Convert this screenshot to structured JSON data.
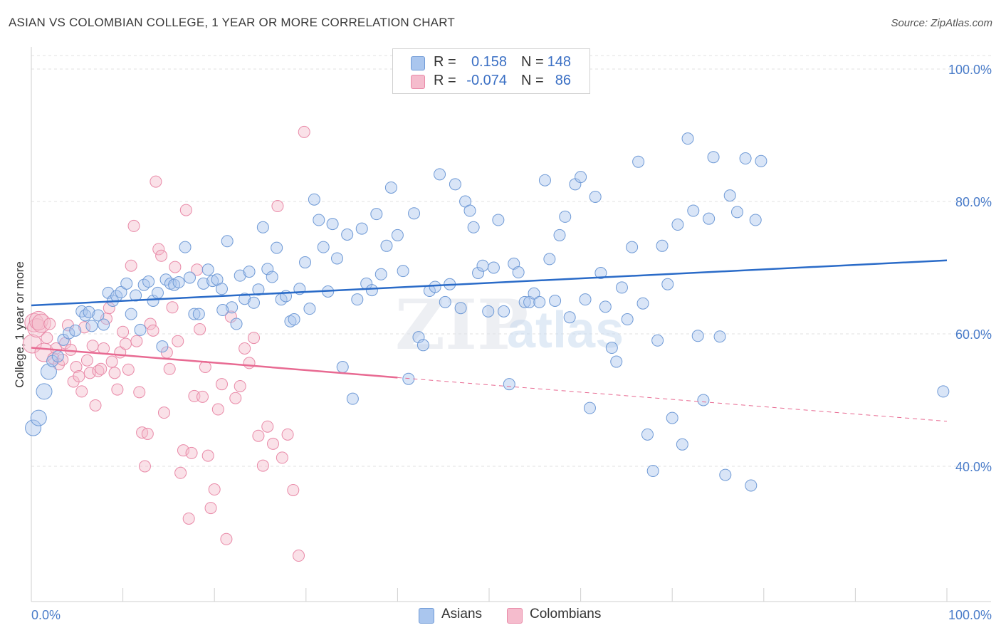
{
  "header": {
    "title": "ASIAN VS COLOMBIAN COLLEGE, 1 YEAR OR MORE CORRELATION CHART",
    "source": "Source: ZipAtlas.com"
  },
  "colors": {
    "asian_fill": "#aac6ee",
    "asian_stroke": "#6f9ad6",
    "asian_line": "#2a6bc8",
    "colombian_fill": "#f5bccd",
    "colombian_stroke": "#e98aa8",
    "colombian_line": "#e86a92",
    "tick_text": "#4a7cc9",
    "grid": "#e2e2e2"
  },
  "legend": {
    "rows": [
      {
        "r_label": "R =",
        "r_value": "0.158",
        "n_label": "N =",
        "n_value": "148",
        "color": "#aac6ee"
      },
      {
        "r_label": "R =",
        "r_value": "-0.074",
        "n_label": "N =",
        "n_value": "86",
        "color": "#f5bccd"
      }
    ]
  },
  "bottom_legend": [
    {
      "label": "Asians",
      "color": "#aac6ee"
    },
    {
      "label": "Colombians",
      "color": "#f5bccd"
    }
  ],
  "watermark": {
    "zip": "ZIP",
    "atlas": "atlas"
  },
  "chart_data": {
    "type": "scatter",
    "title": "ASIAN VS COLOMBIAN COLLEGE, 1 YEAR OR MORE CORRELATION CHART",
    "xlabel": "",
    "ylabel": "College, 1 year or more",
    "xlim": [
      0,
      100
    ],
    "ylim": [
      18,
      104
    ],
    "x_tick_labels": [
      "0.0%",
      "100.0%"
    ],
    "y_ticks": [
      40,
      60,
      80,
      100
    ],
    "y_tick_labels": [
      "40.0%",
      "60.0%",
      "80.0%",
      "100.0%"
    ],
    "grid": true,
    "legend_position": "top-center",
    "series": [
      {
        "name": "Asians",
        "r": 0.158,
        "n": 148,
        "trend": {
          "x": [
            0,
            100
          ],
          "y": [
            64.3,
            71.1
          ]
        },
        "points": [
          [
            0.2,
            45.8
          ],
          [
            0.8,
            47.3
          ],
          [
            1.4,
            51.3
          ],
          [
            1.9,
            54.3
          ],
          [
            2.3,
            55.9
          ],
          [
            2.9,
            56.6
          ],
          [
            3.5,
            59.1
          ],
          [
            4.1,
            60.1
          ],
          [
            4.8,
            60.5
          ],
          [
            5.5,
            63.4
          ],
          [
            5.9,
            62.8
          ],
          [
            6.3,
            63.3
          ],
          [
            6.6,
            61.2
          ],
          [
            7.3,
            62.8
          ],
          [
            7.9,
            61.4
          ],
          [
            8.4,
            66.2
          ],
          [
            8.9,
            65.0
          ],
          [
            9.3,
            65.7
          ],
          [
            9.8,
            66.3
          ],
          [
            10.4,
            67.6
          ],
          [
            10.9,
            63.0
          ],
          [
            11.4,
            65.8
          ],
          [
            11.9,
            60.6
          ],
          [
            12.3,
            67.4
          ],
          [
            12.8,
            67.9
          ],
          [
            13.3,
            65.0
          ],
          [
            13.8,
            66.2
          ],
          [
            14.3,
            58.1
          ],
          [
            14.7,
            68.2
          ],
          [
            15.2,
            67.6
          ],
          [
            15.6,
            67.4
          ],
          [
            16.1,
            67.8
          ],
          [
            16.8,
            73.1
          ],
          [
            17.3,
            68.5
          ],
          [
            17.8,
            63.0
          ],
          [
            18.3,
            63.0
          ],
          [
            18.8,
            67.6
          ],
          [
            19.3,
            69.7
          ],
          [
            19.8,
            68.0
          ],
          [
            20.3,
            68.2
          ],
          [
            20.8,
            66.8
          ],
          [
            21.4,
            74.0
          ],
          [
            21.9,
            64.0
          ],
          [
            22.4,
            61.5
          ],
          [
            22.8,
            68.8
          ],
          [
            23.3,
            65.3
          ],
          [
            23.8,
            69.4
          ],
          [
            24.3,
            64.7
          ],
          [
            24.8,
            66.7
          ],
          [
            25.3,
            76.1
          ],
          [
            25.8,
            69.8
          ],
          [
            26.3,
            68.6
          ],
          [
            26.8,
            73.0
          ],
          [
            27.3,
            65.2
          ],
          [
            27.8,
            65.7
          ],
          [
            28.3,
            61.9
          ],
          [
            28.7,
            62.2
          ],
          [
            29.3,
            66.8
          ],
          [
            29.9,
            70.8
          ],
          [
            30.4,
            63.8
          ],
          [
            30.9,
            80.3
          ],
          [
            31.4,
            77.2
          ],
          [
            31.9,
            73.1
          ],
          [
            32.4,
            66.4
          ],
          [
            32.9,
            76.6
          ],
          [
            33.4,
            71.4
          ],
          [
            34.0,
            55.0
          ],
          [
            34.5,
            75.0
          ],
          [
            35.1,
            50.2
          ],
          [
            35.6,
            65.2
          ],
          [
            36.1,
            75.9
          ],
          [
            36.6,
            67.6
          ],
          [
            37.2,
            66.6
          ],
          [
            37.7,
            78.1
          ],
          [
            38.2,
            69.0
          ],
          [
            38.8,
            73.3
          ],
          [
            39.3,
            82.1
          ],
          [
            40.0,
            74.9
          ],
          [
            40.6,
            69.5
          ],
          [
            41.2,
            53.2
          ],
          [
            41.8,
            78.2
          ],
          [
            42.3,
            59.5
          ],
          [
            42.8,
            58.3
          ],
          [
            43.5,
            66.5
          ],
          [
            44.1,
            67.1
          ],
          [
            44.6,
            84.1
          ],
          [
            45.2,
            64.8
          ],
          [
            45.7,
            67.5
          ],
          [
            46.3,
            82.6
          ],
          [
            46.9,
            63.9
          ],
          [
            47.4,
            80.0
          ],
          [
            47.9,
            78.6
          ],
          [
            48.3,
            76.1
          ],
          [
            48.8,
            69.2
          ],
          [
            49.3,
            70.3
          ],
          [
            49.9,
            63.4
          ],
          [
            50.5,
            70.0
          ],
          [
            51.0,
            77.2
          ],
          [
            51.6,
            63.4
          ],
          [
            52.2,
            52.4
          ],
          [
            52.7,
            70.6
          ],
          [
            53.2,
            69.3
          ],
          [
            53.9,
            64.8
          ],
          [
            54.4,
            64.8
          ],
          [
            54.9,
            66.1
          ],
          [
            55.5,
            64.8
          ],
          [
            56.1,
            83.2
          ],
          [
            56.6,
            71.3
          ],
          [
            57.2,
            65.0
          ],
          [
            57.7,
            74.9
          ],
          [
            58.3,
            77.7
          ],
          [
            58.8,
            62.5
          ],
          [
            59.4,
            82.6
          ],
          [
            60.0,
            83.7
          ],
          [
            60.5,
            65.2
          ],
          [
            61.0,
            48.8
          ],
          [
            61.6,
            80.7
          ],
          [
            62.2,
            69.2
          ],
          [
            62.7,
            64.1
          ],
          [
            63.4,
            57.9
          ],
          [
            63.9,
            55.8
          ],
          [
            64.5,
            67.0
          ],
          [
            65.1,
            62.2
          ],
          [
            65.6,
            73.1
          ],
          [
            66.3,
            86.0
          ],
          [
            66.8,
            64.6
          ],
          [
            67.3,
            44.8
          ],
          [
            67.9,
            39.3
          ],
          [
            68.4,
            59.0
          ],
          [
            68.9,
            73.3
          ],
          [
            69.5,
            67.5
          ],
          [
            70.0,
            47.3
          ],
          [
            70.6,
            76.5
          ],
          [
            71.1,
            43.3
          ],
          [
            71.7,
            89.5
          ],
          [
            72.3,
            78.6
          ],
          [
            72.8,
            59.7
          ],
          [
            73.4,
            50.0
          ],
          [
            74.0,
            77.4
          ],
          [
            74.5,
            86.7
          ],
          [
            75.2,
            59.6
          ],
          [
            75.8,
            38.7
          ],
          [
            76.3,
            80.9
          ],
          [
            77.1,
            78.4
          ],
          [
            78.0,
            86.5
          ],
          [
            78.6,
            37.1
          ],
          [
            79.1,
            77.2
          ],
          [
            79.7,
            86.1
          ],
          [
            99.6,
            51.3
          ],
          [
            20.9,
            63.6
          ]
        ]
      },
      {
        "name": "Colombians",
        "r": -0.074,
        "n": 86,
        "trend": {
          "x": [
            0,
            40
          ],
          "y": [
            57.9,
            53.4
          ]
        },
        "trend_extension": {
          "x": [
            40,
            100
          ],
          "y": [
            53.4,
            46.8
          ]
        },
        "points": [
          [
            0.1,
            58.5
          ],
          [
            0.3,
            61.7
          ],
          [
            0.6,
            60.9
          ],
          [
            0.8,
            62.0
          ],
          [
            1.1,
            61.6
          ],
          [
            1.4,
            57.2
          ],
          [
            1.7,
            59.4
          ],
          [
            2.0,
            61.5
          ],
          [
            2.4,
            56.3
          ],
          [
            2.7,
            57.8
          ],
          [
            3.0,
            55.4
          ],
          [
            3.4,
            56.1
          ],
          [
            3.7,
            58.6
          ],
          [
            4.0,
            61.3
          ],
          [
            4.3,
            57.6
          ],
          [
            4.6,
            52.8
          ],
          [
            4.9,
            55.0
          ],
          [
            5.2,
            53.6
          ],
          [
            5.5,
            51.3
          ],
          [
            5.8,
            61.0
          ],
          [
            6.1,
            56.0
          ],
          [
            6.4,
            54.1
          ],
          [
            6.7,
            58.2
          ],
          [
            7.0,
            49.2
          ],
          [
            7.3,
            54.4
          ],
          [
            7.6,
            54.7
          ],
          [
            7.9,
            57.8
          ],
          [
            8.2,
            62.3
          ],
          [
            8.5,
            63.9
          ],
          [
            8.8,
            55.8
          ],
          [
            9.1,
            54.1
          ],
          [
            9.4,
            51.6
          ],
          [
            9.7,
            57.2
          ],
          [
            10.0,
            60.3
          ],
          [
            10.3,
            58.5
          ],
          [
            10.6,
            54.6
          ],
          [
            10.9,
            70.3
          ],
          [
            11.2,
            76.3
          ],
          [
            11.5,
            58.9
          ],
          [
            11.8,
            51.2
          ],
          [
            12.1,
            45.1
          ],
          [
            12.4,
            40.0
          ],
          [
            12.7,
            44.9
          ],
          [
            13.0,
            61.5
          ],
          [
            13.3,
            60.5
          ],
          [
            13.6,
            83.0
          ],
          [
            13.9,
            72.8
          ],
          [
            14.2,
            71.8
          ],
          [
            14.5,
            48.1
          ],
          [
            14.8,
            57.2
          ],
          [
            15.1,
            54.7
          ],
          [
            15.4,
            64.0
          ],
          [
            15.7,
            70.1
          ],
          [
            16.0,
            58.9
          ],
          [
            16.3,
            39.0
          ],
          [
            16.6,
            42.4
          ],
          [
            16.9,
            78.7
          ],
          [
            17.2,
            32.1
          ],
          [
            17.5,
            42.0
          ],
          [
            17.8,
            50.6
          ],
          [
            18.1,
            69.7
          ],
          [
            18.4,
            60.7
          ],
          [
            18.7,
            50.5
          ],
          [
            19.0,
            55.0
          ],
          [
            19.3,
            41.6
          ],
          [
            19.6,
            33.7
          ],
          [
            20.0,
            36.5
          ],
          [
            20.4,
            48.6
          ],
          [
            20.8,
            52.4
          ],
          [
            21.3,
            29.0
          ],
          [
            21.8,
            62.6
          ],
          [
            22.3,
            50.3
          ],
          [
            22.8,
            52.1
          ],
          [
            23.3,
            57.8
          ],
          [
            23.8,
            55.6
          ],
          [
            24.3,
            59.4
          ],
          [
            24.8,
            44.6
          ],
          [
            25.3,
            40.1
          ],
          [
            25.8,
            46.0
          ],
          [
            26.4,
            43.4
          ],
          [
            26.9,
            79.3
          ],
          [
            27.4,
            41.3
          ],
          [
            28.0,
            44.8
          ],
          [
            28.6,
            36.4
          ],
          [
            29.2,
            26.5
          ],
          [
            29.8,
            90.5
          ]
        ]
      }
    ]
  }
}
